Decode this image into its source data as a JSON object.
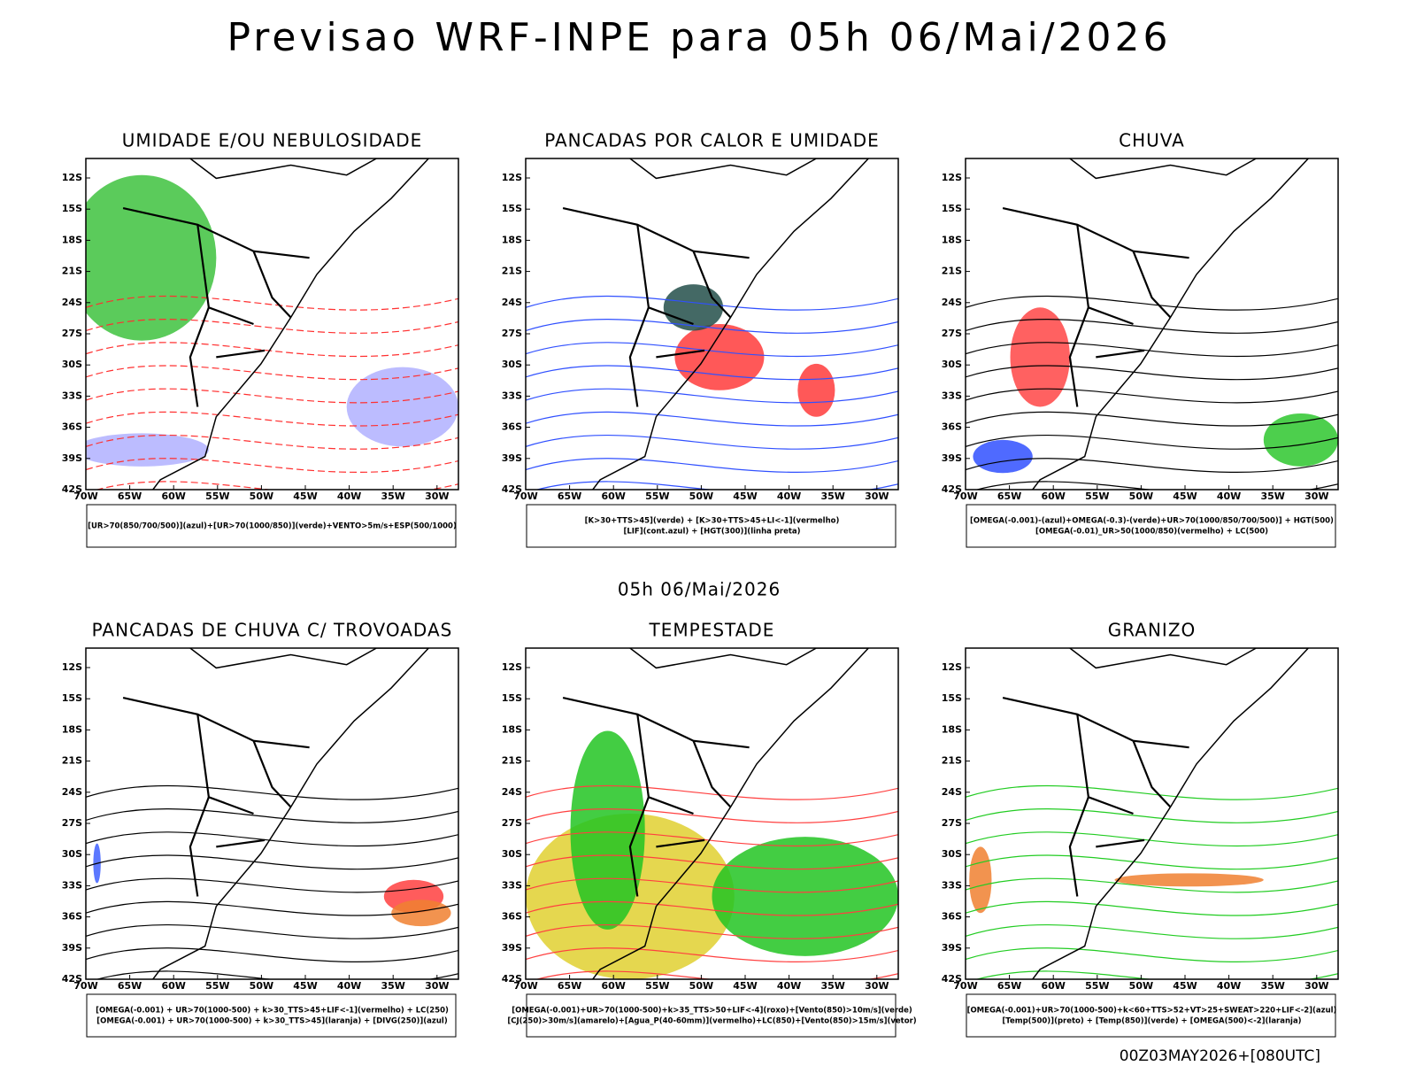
{
  "title": "Previsao WRF-INPE  para 05h 06/Mai/2026",
  "subtitle": "05h 06/Mai/2026",
  "footer": "00Z03MAY2026+[080UTC]",
  "lat_labels": [
    "12S",
    "15S",
    "18S",
    "21S",
    "24S",
    "27S",
    "30S",
    "33S",
    "36S",
    "39S",
    "42S"
  ],
  "lon_labels": [
    "70W",
    "65W",
    "60W",
    "55W",
    "50W",
    "45W",
    "40W",
    "35W",
    "30W"
  ],
  "panels": [
    {
      "title": "UMIDADE E/OU NEBULOSIDADE",
      "legend": [
        "[UR>70(850/700/500)](azul)+[UR>70(1000/850)](verde)+VENTO>5m/s+ESP(500/1000)"
      ]
    },
    {
      "title": "PANCADAS POR CALOR E UMIDADE",
      "legend": [
        "[K>30+TTS>45](verde) + [K>30+TTS>45+LI<-1](vermelho)",
        "[LIF](cont.azul) + [HGT(300)](linha preta)"
      ]
    },
    {
      "title": "CHUVA",
      "legend": [
        "[OMEGA(-0.001)-(azul)+OMEGA(-0.3)-(verde)+UR>70(1000/850/700/500)] + HGT(500)",
        "[OMEGA(-0.01)_UR>50(1000/850)(vermelho) + LC(500)"
      ]
    },
    {
      "title": "PANCADAS DE CHUVA C/ TROVOADAS",
      "legend": [
        "[OMEGA(-0.001) + UR>70(1000-500) + k>30_TTS>45+LIF<-1](vermelho) + LC(250)",
        "[OMEGA(-0.001) + UR>70(1000-500) + k>30_TTS>45](laranja) + [DIVG(250)](azul)"
      ]
    },
    {
      "title": "TEMPESTADE",
      "legend": [
        "[OMEGA(-0.001)+UR>70(1000-500)+k>35_TTS>50+LIF<-4](roxo)+[Vento(850)>10m/s](verde)",
        "[CJ(250)>30m/s](amarelo)+[Agua_P(40-60mm)](vermelho)+LC(850)+[Vento(850)>15m/s](vetor)"
      ]
    },
    {
      "title": "GRANIZO",
      "legend": [
        "[OMEGA(-0.001)+UR>70(1000-500)+k<60+TTS>52+VT>25+SWEAT>220+LIF<-2](azul)",
        "[Temp(500)](preto) + [Temp(850)](verde) + [OMEGA(500)<-2](laranja)"
      ]
    }
  ]
}
